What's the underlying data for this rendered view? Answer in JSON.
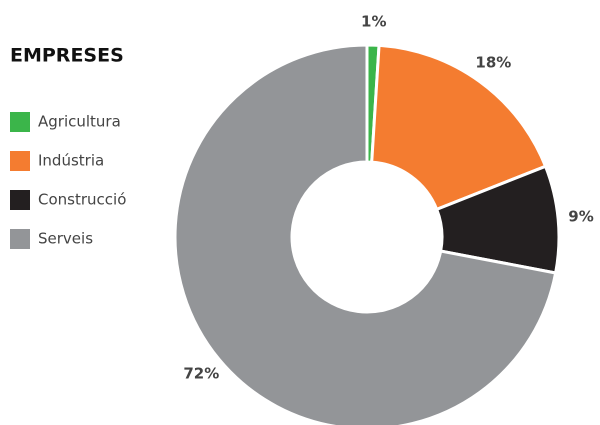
{
  "chart_data": {
    "type": "donut",
    "title": "EMPRESES",
    "categories": [
      "Agricultura",
      "Indústria",
      "Construcció",
      "Serveis"
    ],
    "values": [
      1,
      18,
      9,
      72
    ],
    "value_labels": [
      "1%",
      "18%",
      "9%",
      "72%"
    ],
    "colors": [
      "#3bb54a",
      "#f47c30",
      "#231f20",
      "#939598"
    ],
    "legend": "left"
  }
}
